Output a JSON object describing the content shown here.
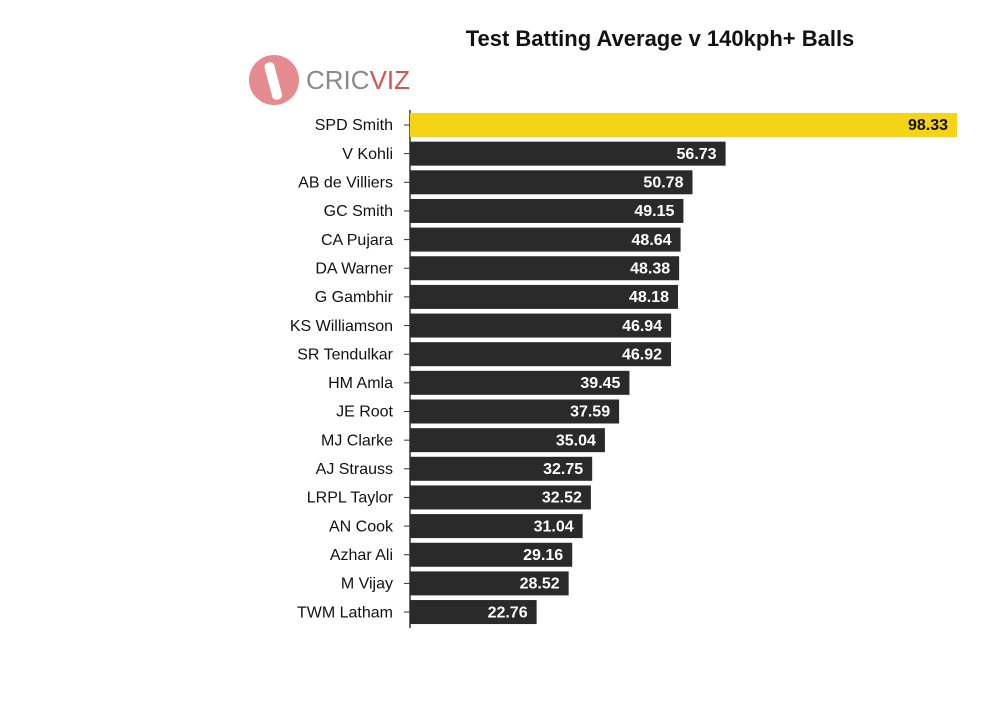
{
  "chart_data": {
    "type": "barh",
    "title": "Test Batting Average v 140kph+ Balls",
    "logo_text": [
      "CRIC",
      "VIZ"
    ],
    "categories": [
      "SPD Smith",
      "V Kohli",
      "AB de Villiers",
      "GC Smith",
      "CA Pujara",
      "DA Warner",
      "G Gambhir",
      "KS Williamson",
      "SR Tendulkar",
      "HM Amla",
      "JE Root",
      "MJ Clarke",
      "AJ Strauss",
      "LRPL Taylor",
      "AN Cook",
      "Azhar Ali",
      "M Vijay",
      "TWM Latham"
    ],
    "values": [
      98.33,
      56.73,
      50.78,
      49.15,
      48.64,
      48.38,
      48.18,
      46.94,
      46.92,
      39.45,
      37.59,
      35.04,
      32.75,
      32.52,
      31.04,
      29.16,
      28.52,
      22.76
    ],
    "colors": [
      "#f5d316",
      "#2b2a2b",
      "#2b2a2b",
      "#2b2a2b",
      "#2b2a2b",
      "#2b2a2b",
      "#2b2a2b",
      "#2b2a2b",
      "#2b2a2b",
      "#2b2a2b",
      "#2b2a2b",
      "#2b2a2b",
      "#2b2a2b",
      "#2b2a2b",
      "#2b2a2b",
      "#2b2a2b",
      "#2b2a2b",
      "#2b2a2b"
    ]
  }
}
